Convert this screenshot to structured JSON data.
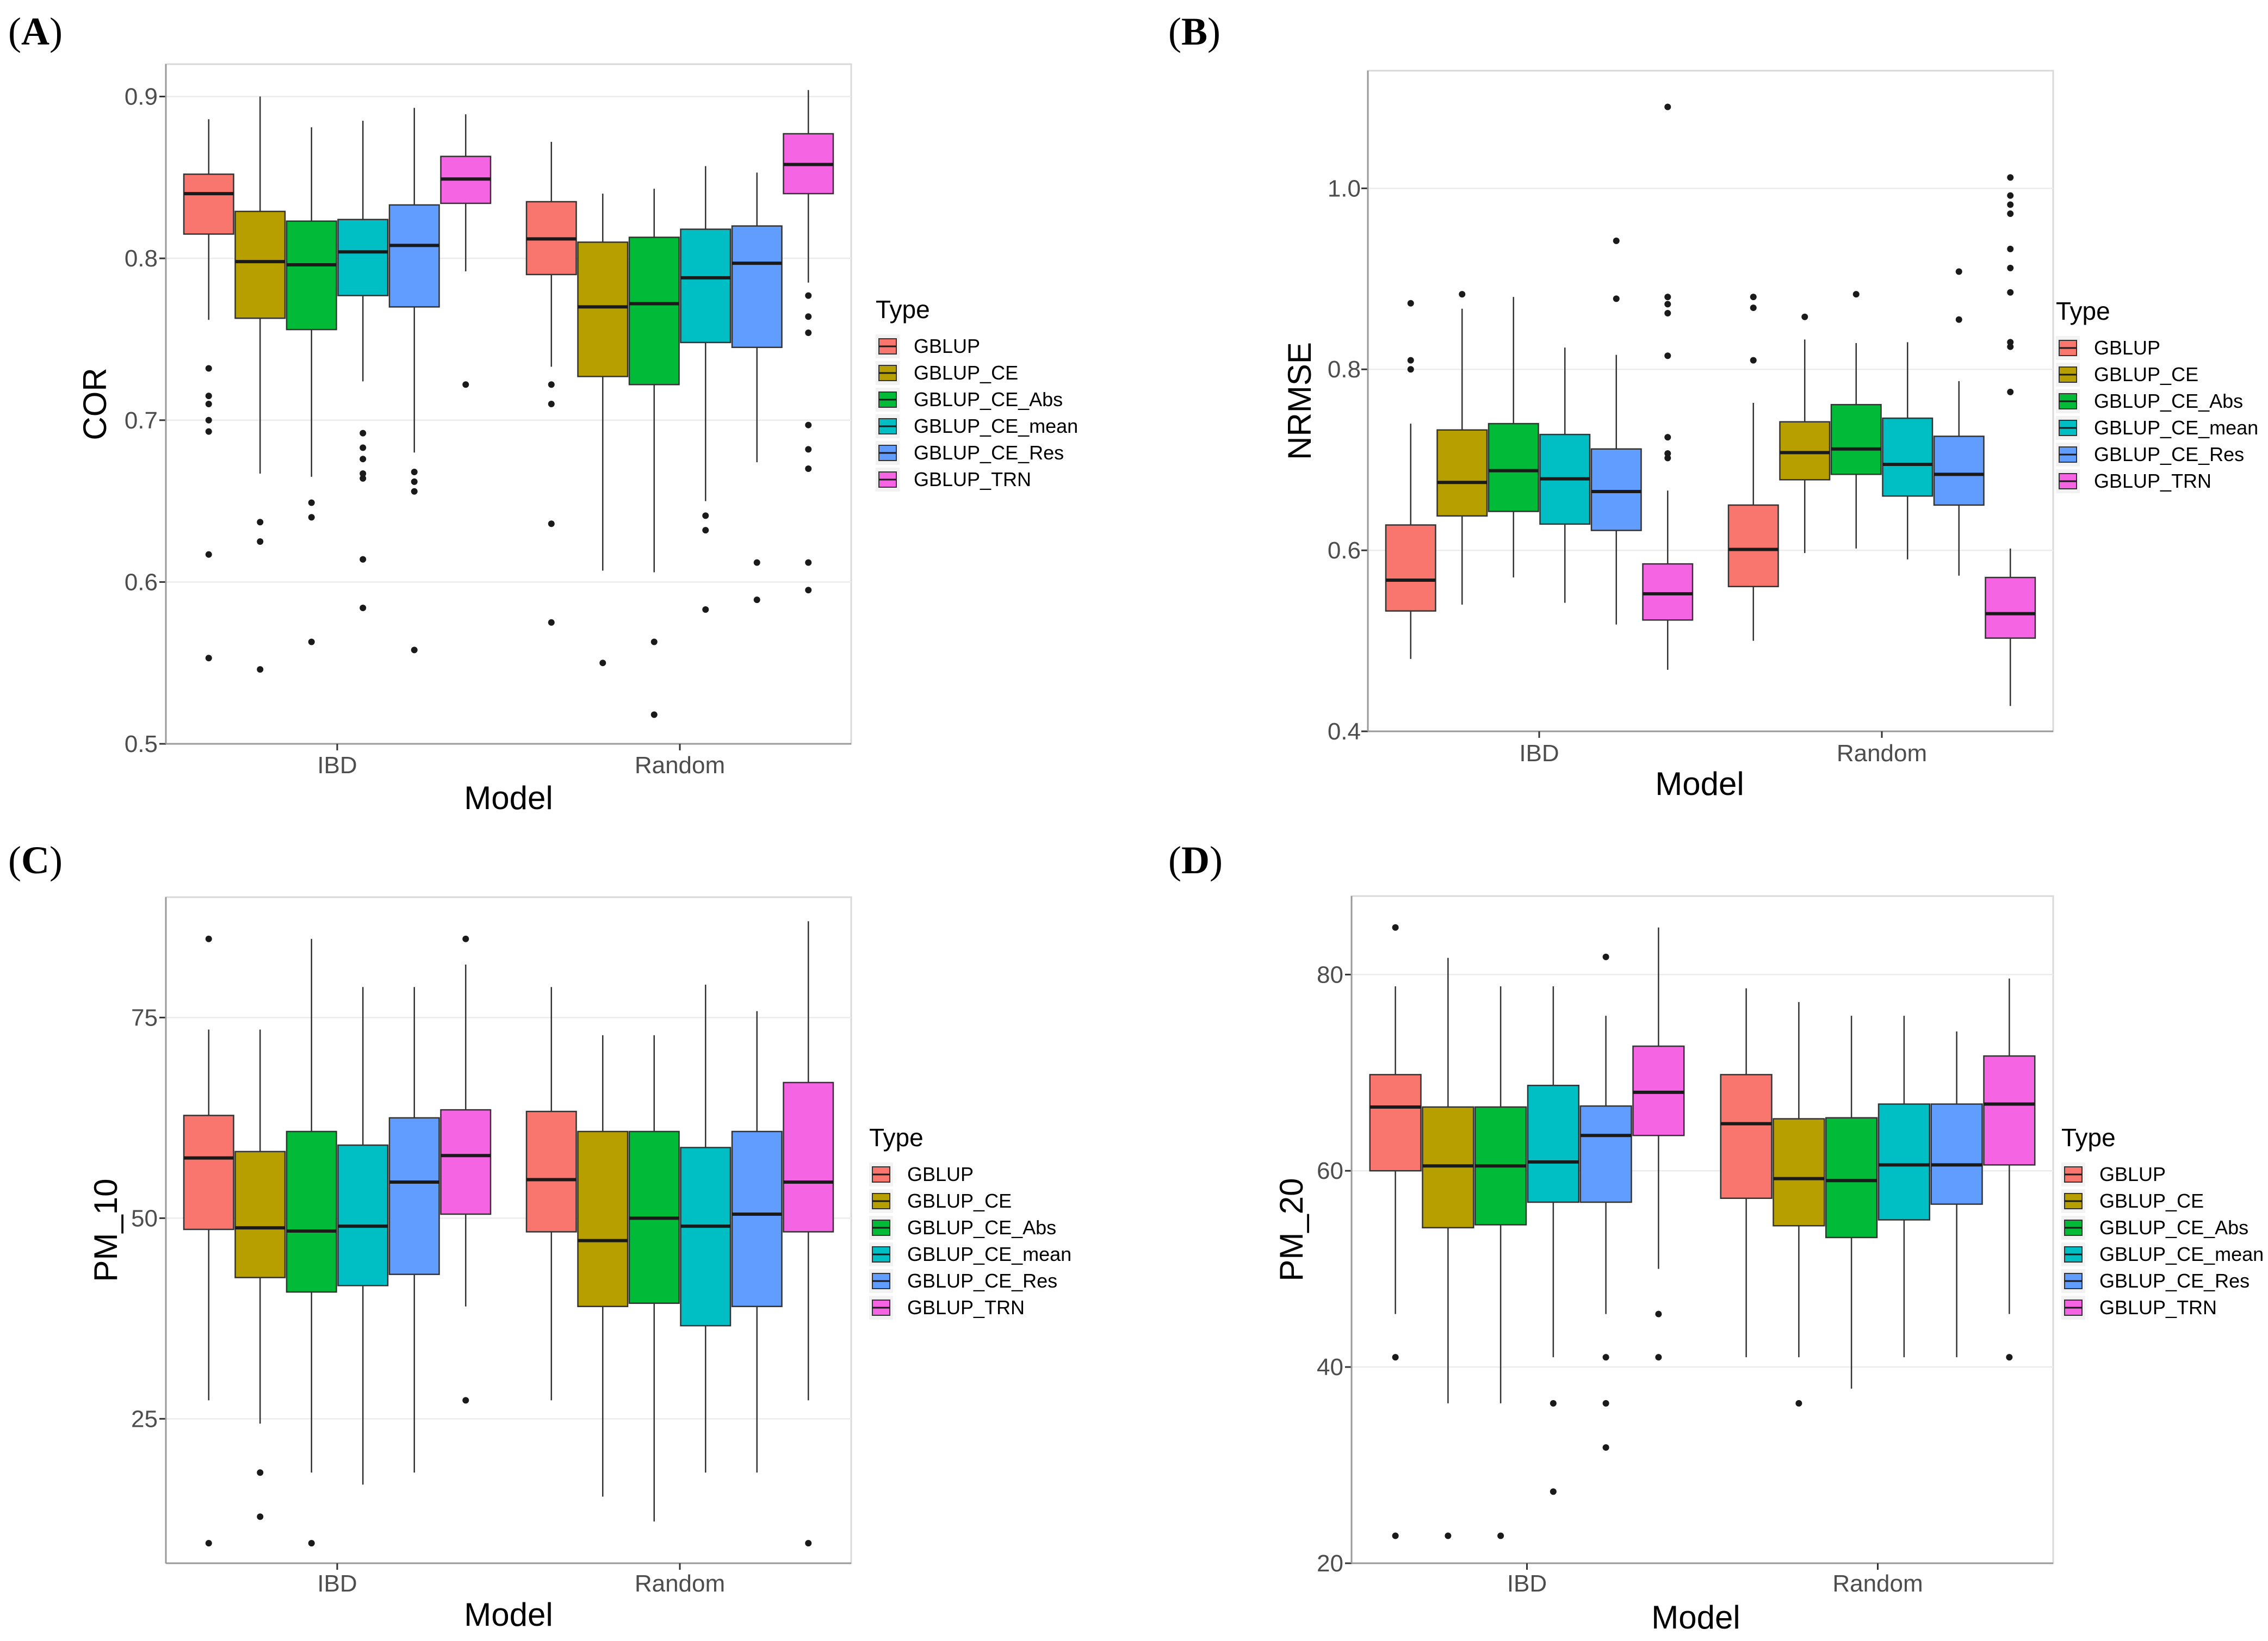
{
  "chart_data": [
    {
      "panel": "(A)",
      "type": "boxplot",
      "xlabel": "Model",
      "ylabel": "COR",
      "categories": [
        "IBD",
        "Random"
      ],
      "ylim": [
        0.5,
        0.92
      ],
      "yticks": [
        0.5,
        0.6,
        0.7,
        0.8,
        0.9
      ],
      "tick_labels": [
        "0.5",
        "0.6",
        "0.7",
        "0.8",
        "0.9"
      ],
      "grid": true,
      "legend_title": "Type",
      "legend_position": "right",
      "series": [
        {
          "name": "GBLUP",
          "color": "#F8766D",
          "boxes": [
            {
              "q1": 0.815,
              "median": 0.84,
              "q3": 0.852,
              "lo": 0.762,
              "hi": 0.886,
              "outliers": [
                0.732,
                0.715,
                0.71,
                0.7,
                0.693,
                0.617,
                0.553
              ]
            },
            {
              "q1": 0.79,
              "median": 0.812,
              "q3": 0.835,
              "lo": 0.733,
              "hi": 0.872,
              "outliers": [
                0.722,
                0.71,
                0.636,
                0.575
              ]
            }
          ]
        },
        {
          "name": "GBLUP_CE",
          "color": "#B79F00",
          "boxes": [
            {
              "q1": 0.763,
              "median": 0.798,
              "q3": 0.829,
              "lo": 0.667,
              "hi": 0.9,
              "outliers": [
                0.637,
                0.625,
                0.546
              ]
            },
            {
              "q1": 0.727,
              "median": 0.77,
              "q3": 0.81,
              "lo": 0.607,
              "hi": 0.84,
              "outliers": [
                0.55
              ]
            }
          ]
        },
        {
          "name": "GBLUP_CE_Abs",
          "color": "#00BA38",
          "boxes": [
            {
              "q1": 0.756,
              "median": 0.796,
              "q3": 0.823,
              "lo": 0.665,
              "hi": 0.881,
              "outliers": [
                0.649,
                0.64,
                0.563
              ]
            },
            {
              "q1": 0.722,
              "median": 0.772,
              "q3": 0.813,
              "lo": 0.606,
              "hi": 0.843,
              "outliers": [
                0.563,
                0.518
              ]
            }
          ]
        },
        {
          "name": "GBLUP_CE_mean",
          "color": "#00BFC4",
          "boxes": [
            {
              "q1": 0.777,
              "median": 0.804,
              "q3": 0.824,
              "lo": 0.724,
              "hi": 0.885,
              "outliers": [
                0.692,
                0.683,
                0.676,
                0.667,
                0.664,
                0.614,
                0.584
              ]
            },
            {
              "q1": 0.748,
              "median": 0.788,
              "q3": 0.818,
              "lo": 0.65,
              "hi": 0.857,
              "outliers": [
                0.641,
                0.632,
                0.583
              ]
            }
          ]
        },
        {
          "name": "GBLUP_CE_Res",
          "color": "#619CFF",
          "boxes": [
            {
              "q1": 0.77,
              "median": 0.808,
              "q3": 0.833,
              "lo": 0.68,
              "hi": 0.893,
              "outliers": [
                0.668,
                0.662,
                0.656,
                0.558
              ]
            },
            {
              "q1": 0.745,
              "median": 0.797,
              "q3": 0.82,
              "lo": 0.674,
              "hi": 0.853,
              "outliers": [
                0.612,
                0.589
              ]
            }
          ]
        },
        {
          "name": "GBLUP_TRN",
          "color": "#F564E3",
          "boxes": [
            {
              "q1": 0.834,
              "median": 0.849,
              "q3": 0.863,
              "lo": 0.792,
              "hi": 0.889,
              "outliers": [
                0.722
              ]
            },
            {
              "q1": 0.84,
              "median": 0.858,
              "q3": 0.877,
              "lo": 0.785,
              "hi": 0.904,
              "outliers": [
                0.777,
                0.764,
                0.754,
                0.697,
                0.682,
                0.67,
                0.612,
                0.595
              ]
            }
          ]
        }
      ]
    },
    {
      "panel": "(B)",
      "type": "boxplot",
      "xlabel": "Model",
      "ylabel": "NRMSE",
      "categories": [
        "IBD",
        "Random"
      ],
      "ylim": [
        0.4,
        1.13
      ],
      "yticks": [
        0.4,
        0.6,
        0.8,
        1.0
      ],
      "tick_labels": [
        "0.4",
        "0.6",
        "0.8",
        "1.0"
      ],
      "grid": true,
      "legend_title": "Type",
      "legend_position": "right",
      "series": [
        {
          "name": "GBLUP",
          "color": "#F8766D",
          "boxes": [
            {
              "q1": 0.533,
              "median": 0.567,
              "q3": 0.628,
              "lo": 0.48,
              "hi": 0.74,
              "outliers": [
                0.873,
                0.81,
                0.8
              ]
            },
            {
              "q1": 0.56,
              "median": 0.601,
              "q3": 0.65,
              "lo": 0.5,
              "hi": 0.763,
              "outliers": [
                0.88,
                0.868,
                0.81
              ]
            }
          ]
        },
        {
          "name": "GBLUP_CE",
          "color": "#B79F00",
          "boxes": [
            {
              "q1": 0.638,
              "median": 0.675,
              "q3": 0.733,
              "lo": 0.54,
              "hi": 0.867,
              "outliers": [
                0.883
              ]
            },
            {
              "q1": 0.678,
              "median": 0.708,
              "q3": 0.742,
              "lo": 0.597,
              "hi": 0.833,
              "outliers": [
                0.858
              ]
            }
          ]
        },
        {
          "name": "GBLUP_CE_Abs",
          "color": "#00BA38",
          "boxes": [
            {
              "q1": 0.643,
              "median": 0.688,
              "q3": 0.74,
              "lo": 0.57,
              "hi": 0.88,
              "outliers": []
            },
            {
              "q1": 0.684,
              "median": 0.712,
              "q3": 0.761,
              "lo": 0.602,
              "hi": 0.829,
              "outliers": [
                0.883
              ]
            }
          ]
        },
        {
          "name": "GBLUP_CE_mean",
          "color": "#00BFC4",
          "boxes": [
            {
              "q1": 0.629,
              "median": 0.679,
              "q3": 0.728,
              "lo": 0.542,
              "hi": 0.824,
              "outliers": []
            },
            {
              "q1": 0.66,
              "median": 0.695,
              "q3": 0.746,
              "lo": 0.59,
              "hi": 0.83,
              "outliers": []
            }
          ]
        },
        {
          "name": "GBLUP_CE_Res",
          "color": "#619CFF",
          "boxes": [
            {
              "q1": 0.622,
              "median": 0.665,
              "q3": 0.712,
              "lo": 0.518,
              "hi": 0.816,
              "outliers": [
                0.942,
                0.878
              ]
            },
            {
              "q1": 0.65,
              "median": 0.684,
              "q3": 0.726,
              "lo": 0.572,
              "hi": 0.787,
              "outliers": [
                0.908,
                0.855
              ]
            }
          ]
        },
        {
          "name": "GBLUP_TRN",
          "color": "#F564E3",
          "boxes": [
            {
              "q1": 0.523,
              "median": 0.552,
              "q3": 0.585,
              "lo": 0.468,
              "hi": 0.666,
              "outliers": [
                1.09,
                0.88,
                0.872,
                0.862,
                0.815,
                0.725,
                0.707,
                0.702
              ]
            },
            {
              "q1": 0.503,
              "median": 0.53,
              "q3": 0.57,
              "lo": 0.428,
              "hi": 0.602,
              "outliers": [
                1.012,
                0.992,
                0.982,
                0.972,
                0.933,
                0.912,
                0.885,
                0.83,
                0.825,
                0.775
              ]
            }
          ]
        }
      ]
    },
    {
      "panel": "(C)",
      "type": "boxplot",
      "xlabel": "Model",
      "ylabel": "PM_10",
      "categories": [
        "IBD",
        "Random"
      ],
      "ylim": [
        7,
        90
      ],
      "yticks": [
        25,
        50,
        75
      ],
      "tick_labels": [
        "25",
        "50",
        "75"
      ],
      "grid": true,
      "legend_title": "Type",
      "legend_position": "right",
      "series": [
        {
          "name": "GBLUP",
          "color": "#F8766D",
          "boxes": [
            {
              "q1": 48.6,
              "median": 57.5,
              "q3": 62.8,
              "lo": 27.3,
              "hi": 73.5,
              "outliers": [
                84.8,
                9.5
              ]
            },
            {
              "q1": 48.3,
              "median": 54.8,
              "q3": 63.3,
              "lo": 27.3,
              "hi": 78.8,
              "outliers": []
            }
          ]
        },
        {
          "name": "GBLUP_CE",
          "color": "#B79F00",
          "boxes": [
            {
              "q1": 42.6,
              "median": 48.8,
              "q3": 58.3,
              "lo": 24.4,
              "hi": 73.5,
              "outliers": [
                18.3,
                12.8
              ]
            },
            {
              "q1": 39.0,
              "median": 47.2,
              "q3": 60.8,
              "lo": 15.3,
              "hi": 72.8,
              "outliers": []
            }
          ]
        },
        {
          "name": "GBLUP_CE_Abs",
          "color": "#00BA38",
          "boxes": [
            {
              "q1": 40.8,
              "median": 48.4,
              "q3": 60.8,
              "lo": 18.3,
              "hi": 84.8,
              "outliers": [
                9.5
              ]
            },
            {
              "q1": 39.4,
              "median": 50.0,
              "q3": 60.8,
              "lo": 12.2,
              "hi": 72.8,
              "outliers": []
            }
          ]
        },
        {
          "name": "GBLUP_CE_mean",
          "color": "#00BFC4",
          "boxes": [
            {
              "q1": 41.6,
              "median": 49.0,
              "q3": 59.1,
              "lo": 16.8,
              "hi": 78.8,
              "outliers": []
            },
            {
              "q1": 36.6,
              "median": 49.0,
              "q3": 58.8,
              "lo": 18.3,
              "hi": 79.1,
              "outliers": []
            }
          ]
        },
        {
          "name": "GBLUP_CE_Res",
          "color": "#619CFF",
          "boxes": [
            {
              "q1": 43.0,
              "median": 54.5,
              "q3": 62.5,
              "lo": 18.3,
              "hi": 78.8,
              "outliers": []
            },
            {
              "q1": 39.0,
              "median": 50.5,
              "q3": 60.8,
              "lo": 18.3,
              "hi": 75.8,
              "outliers": []
            }
          ]
        },
        {
          "name": "GBLUP_TRN",
          "color": "#F564E3",
          "boxes": [
            {
              "q1": 50.5,
              "median": 57.8,
              "q3": 63.5,
              "lo": 39.0,
              "hi": 81.6,
              "outliers": [
                84.8,
                27.3
              ]
            },
            {
              "q1": 48.3,
              "median": 54.5,
              "q3": 66.9,
              "lo": 27.3,
              "hi": 87.0,
              "outliers": [
                9.5
              ]
            }
          ]
        }
      ]
    },
    {
      "panel": "(D)",
      "type": "boxplot",
      "xlabel": "Model",
      "ylabel": "PM_20",
      "categories": [
        "IBD",
        "Random"
      ],
      "ylim": [
        20,
        88
      ],
      "yticks": [
        20,
        40,
        60,
        80
      ],
      "tick_labels": [
        "20",
        "40",
        "60",
        "80"
      ],
      "grid": true,
      "legend_title": "Type",
      "legend_position": "right",
      "series": [
        {
          "name": "GBLUP",
          "color": "#F8766D",
          "boxes": [
            {
              "q1": 60.0,
              "median": 66.5,
              "q3": 69.8,
              "lo": 45.4,
              "hi": 78.8,
              "outliers": [
                84.8,
                41.0,
                22.8
              ]
            },
            {
              "q1": 57.2,
              "median": 64.8,
              "q3": 69.8,
              "lo": 41.0,
              "hi": 78.6,
              "outliers": []
            }
          ]
        },
        {
          "name": "GBLUP_CE",
          "color": "#B79F00",
          "boxes": [
            {
              "q1": 54.2,
              "median": 60.5,
              "q3": 66.5,
              "lo": 36.3,
              "hi": 81.7,
              "outliers": [
                22.8
              ]
            },
            {
              "q1": 54.4,
              "median": 59.2,
              "q3": 65.3,
              "lo": 41.0,
              "hi": 77.2,
              "outliers": [
                36.3
              ]
            }
          ]
        },
        {
          "name": "GBLUP_CE_Abs",
          "color": "#00BA38",
          "boxes": [
            {
              "q1": 54.5,
              "median": 60.5,
              "q3": 66.5,
              "lo": 36.3,
              "hi": 78.8,
              "outliers": [
                22.8
              ]
            },
            {
              "q1": 53.2,
              "median": 59.0,
              "q3": 65.4,
              "lo": 37.8,
              "hi": 75.8,
              "outliers": []
            }
          ]
        },
        {
          "name": "GBLUP_CE_mean",
          "color": "#00BFC4",
          "boxes": [
            {
              "q1": 56.8,
              "median": 60.9,
              "q3": 68.7,
              "lo": 41.0,
              "hi": 78.8,
              "outliers": [
                36.3,
                27.3
              ]
            },
            {
              "q1": 55.0,
              "median": 60.6,
              "q3": 66.8,
              "lo": 41.0,
              "hi": 75.8,
              "outliers": []
            }
          ]
        },
        {
          "name": "GBLUP_CE_Res",
          "color": "#619CFF",
          "boxes": [
            {
              "q1": 56.8,
              "median": 63.6,
              "q3": 66.6,
              "lo": 45.4,
              "hi": 75.8,
              "outliers": [
                81.8,
                41.0,
                36.3,
                31.8
              ]
            },
            {
              "q1": 56.6,
              "median": 60.6,
              "q3": 66.8,
              "lo": 41.0,
              "hi": 74.2,
              "outliers": []
            }
          ]
        },
        {
          "name": "GBLUP_TRN",
          "color": "#F564E3",
          "boxes": [
            {
              "q1": 63.6,
              "median": 68.0,
              "q3": 72.7,
              "lo": 50.0,
              "hi": 84.8,
              "outliers": [
                45.4,
                41.0
              ]
            },
            {
              "q1": 60.6,
              "median": 66.8,
              "q3": 71.7,
              "lo": 45.4,
              "hi": 79.6,
              "outliers": [
                41.0
              ]
            }
          ]
        }
      ]
    }
  ]
}
